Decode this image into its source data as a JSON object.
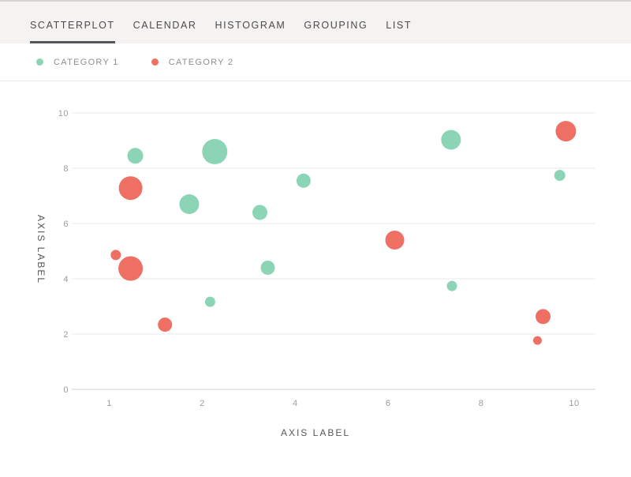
{
  "tab_bar": {
    "tabs": [
      {
        "label": "SCATTERPLOT",
        "active": true
      },
      {
        "label": "CALENDAR",
        "active": false
      },
      {
        "label": "HISTOGRAM",
        "active": false
      },
      {
        "label": "GROUPING",
        "active": false
      },
      {
        "label": "LIST",
        "active": false
      }
    ],
    "active_underline_color": "#55565a"
  },
  "legend": {
    "items": [
      {
        "label": "CATEGORY 1",
        "color": "#8BD5B6"
      },
      {
        "label": "CATEGORY 2",
        "color": "#EE7064"
      }
    ]
  },
  "chart_data": {
    "type": "scatter",
    "subtype": "bubble",
    "title": "",
    "xlabel": "AXIS LABEL",
    "ylabel": "AXIS LABEL",
    "x_ticks": [
      1,
      2,
      4,
      6,
      8,
      10
    ],
    "x_tick_spacing": "uniform",
    "y_ticks": [
      0,
      2,
      4,
      6,
      8,
      10
    ],
    "ylim": [
      0,
      10
    ],
    "grid": "horizontal-only",
    "gridline_color": "#e8e8e8",
    "zero_line_color": "#d2d2d2",
    "legend_position": "top-left",
    "series": [
      {
        "name": "CATEGORY 1",
        "color": "#8BD5B6",
        "points": [
          {
            "x": 1.28,
            "y": 8.45,
            "r": 10
          },
          {
            "x": 2.27,
            "y": 8.6,
            "r": 16
          },
          {
            "x": 1.86,
            "y": 6.7,
            "r": 12.5
          },
          {
            "x": 3.24,
            "y": 6.4,
            "r": 9.5
          },
          {
            "x": 4.18,
            "y": 7.55,
            "r": 9
          },
          {
            "x": 3.41,
            "y": 4.4,
            "r": 9
          },
          {
            "x": 2.17,
            "y": 3.17,
            "r": 6.5
          },
          {
            "x": 7.35,
            "y": 9.03,
            "r": 12.5
          },
          {
            "x": 7.37,
            "y": 3.74,
            "r": 6.5
          },
          {
            "x": 9.69,
            "y": 7.74,
            "r": 7
          }
        ]
      },
      {
        "name": "CATEGORY 2",
        "color": "#EE7064",
        "points": [
          {
            "x": 1.23,
            "y": 7.28,
            "r": 15
          },
          {
            "x": 1.07,
            "y": 4.86,
            "r": 6.5
          },
          {
            "x": 1.23,
            "y": 4.37,
            "r": 15.5
          },
          {
            "x": 1.6,
            "y": 2.34,
            "r": 9
          },
          {
            "x": 6.14,
            "y": 5.4,
            "r": 12
          },
          {
            "x": 9.82,
            "y": 9.34,
            "r": 13
          },
          {
            "x": 9.33,
            "y": 2.63,
            "r": 9.5
          },
          {
            "x": 9.21,
            "y": 1.77,
            "r": 5.5
          }
        ]
      }
    ]
  }
}
